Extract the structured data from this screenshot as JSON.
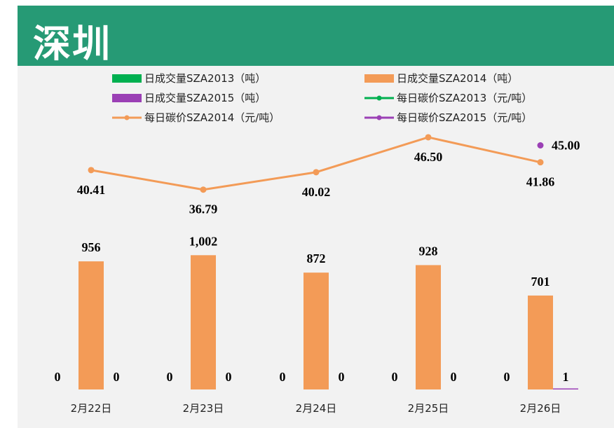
{
  "header": {
    "title": "深圳"
  },
  "chart_data": {
    "type": "bar",
    "title": "深圳",
    "categories": [
      "2月22日",
      "2月23日",
      "2月24日",
      "2月25日",
      "2月26日"
    ],
    "series": [
      {
        "name": "日成交量SZA2013（吨）",
        "kind": "bar",
        "color": "#00b050",
        "values": [
          0,
          0,
          0,
          0,
          0
        ]
      },
      {
        "name": "日成交量SZA2014（吨）",
        "kind": "bar",
        "color": "#f39b57",
        "values": [
          956,
          1002,
          872,
          928,
          701
        ]
      },
      {
        "name": "日成交量SZA2015（吨）",
        "kind": "bar",
        "color": "#9b40b5",
        "values": [
          0,
          0,
          0,
          0,
          1
        ]
      },
      {
        "name": "每日碳价SZA2013（元/吨）",
        "kind": "line",
        "color": "#00b050",
        "values": [
          null,
          null,
          null,
          null,
          null
        ]
      },
      {
        "name": "每日碳价SZA2014（元/吨）",
        "kind": "line",
        "color": "#f39b57",
        "values": [
          40.41,
          36.79,
          40.02,
          46.5,
          41.86
        ]
      },
      {
        "name": "每日碳价SZA2015（元/吨）",
        "kind": "line",
        "color": "#9b40b5",
        "values": [
          null,
          null,
          null,
          null,
          45.0
        ]
      }
    ],
    "bar_labels": [
      [
        "0",
        "0",
        "0",
        "0",
        "0"
      ],
      [
        "956",
        "1,002",
        "872",
        "928",
        "701"
      ],
      [
        "0",
        "0",
        "0",
        "0",
        "1"
      ]
    ],
    "line_labels": [
      [
        "",
        "",
        "",
        "",
        ""
      ],
      [
        "40.41",
        "36.79",
        "40.02",
        "46.50",
        "41.86"
      ],
      [
        "",
        "",
        "",
        "",
        "45.00"
      ]
    ],
    "volume_range": [
      0,
      1150
    ],
    "price_range": [
      20,
      50
    ],
    "legend_position": "top",
    "grid": false
  }
}
